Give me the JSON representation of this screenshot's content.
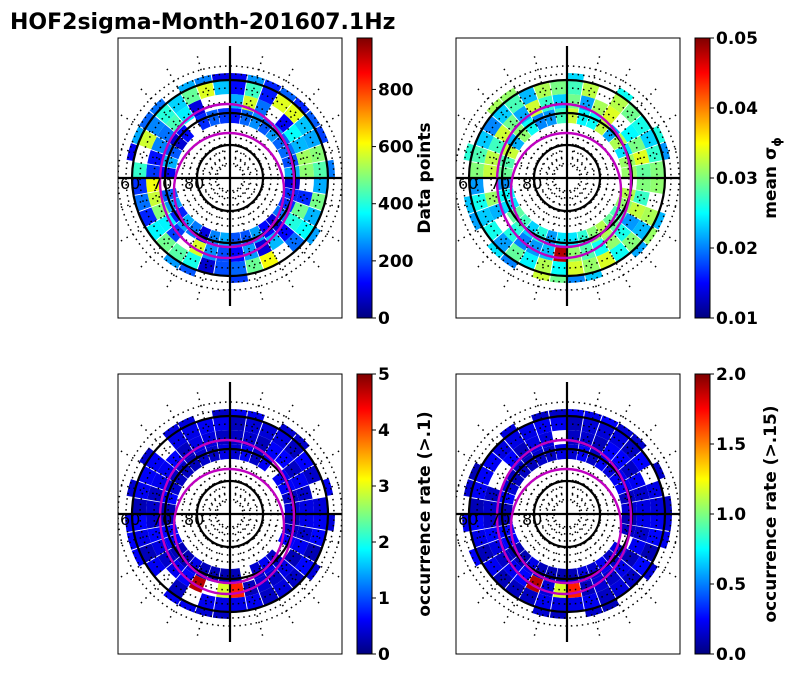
{
  "title": "HOF2sigma-Month-201607.1Hz",
  "colors": {
    "mlt_contour": "#c000c0",
    "grid": "#000000",
    "colormap": "jet"
  },
  "chart_data": [
    {
      "type": "heatmap",
      "subtype": "polar",
      "colorbar": {
        "label": "Data points",
        "ticks": [
          "0",
          "200",
          "400",
          "600",
          "800"
        ],
        "range": [
          0,
          980
        ]
      },
      "lat_labels": [
        "60",
        "70",
        "80"
      ]
    },
    {
      "type": "heatmap",
      "subtype": "polar",
      "colorbar": {
        "label": "mean σ",
        "label_sub": "ϕ",
        "ticks": [
          "0.01",
          "0.02",
          "0.03",
          "0.04",
          "0.05"
        ],
        "range": [
          0.01,
          0.05
        ]
      },
      "lat_labels": [
        "60",
        "70",
        "80"
      ]
    },
    {
      "type": "heatmap",
      "subtype": "polar",
      "colorbar": {
        "label": "occurrence rate (>.1)",
        "ticks": [
          "0",
          "1",
          "2",
          "3",
          "4",
          "5"
        ],
        "range": [
          0,
          5
        ]
      },
      "lat_labels": [
        "60",
        "70",
        "80"
      ]
    },
    {
      "type": "heatmap",
      "subtype": "polar",
      "colorbar": {
        "label": "occurrence rate (>.15)",
        "ticks": [
          "0.0",
          "0.5",
          "1.0",
          "1.5",
          "2.0"
        ],
        "range": [
          0,
          2
        ]
      },
      "lat_labels": [
        "60",
        "70",
        "80"
      ]
    }
  ]
}
